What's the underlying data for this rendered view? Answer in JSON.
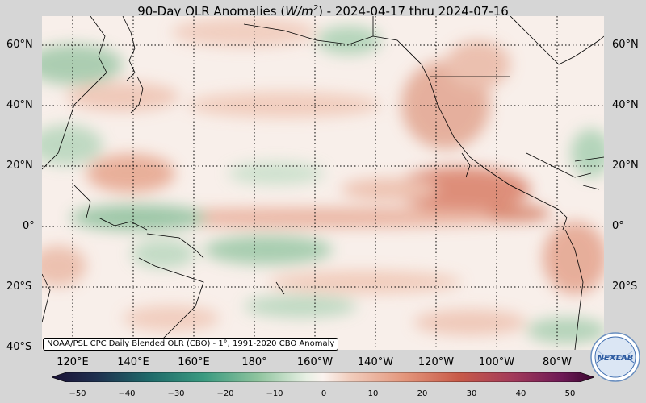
{
  "title": "90-Day OLR Anomalies (",
  "title_units_base": "W/m",
  "title_units_exp": "2",
  "title_dates": ") - 2024-04-17 thru 2024-07-16",
  "credit": "NOAA/PSL CPC Daily Blended OLR (CBO) - 1°, 1991-2020 CBO Anomaly",
  "lat_labels": [
    "60°N",
    "40°N",
    "20°N",
    "0°",
    "20°S",
    "40°S"
  ],
  "lon_labels": [
    "120°E",
    "140°E",
    "160°E",
    "180°",
    "160°W",
    "140°W",
    "120°W",
    "100°W",
    "80°W"
  ],
  "colorbar_ticks": [
    "−50",
    "−40",
    "−30",
    "−20",
    "−10",
    "0",
    "10",
    "20",
    "30",
    "40",
    "50"
  ],
  "logo_text": "NEXLAB",
  "colors": {
    "negative": "#3a9a6a",
    "positive": "#c8593e",
    "neutral": "#faf2ee",
    "low_end": "#2a1a4e",
    "high_end": "#4a0a3a"
  }
}
